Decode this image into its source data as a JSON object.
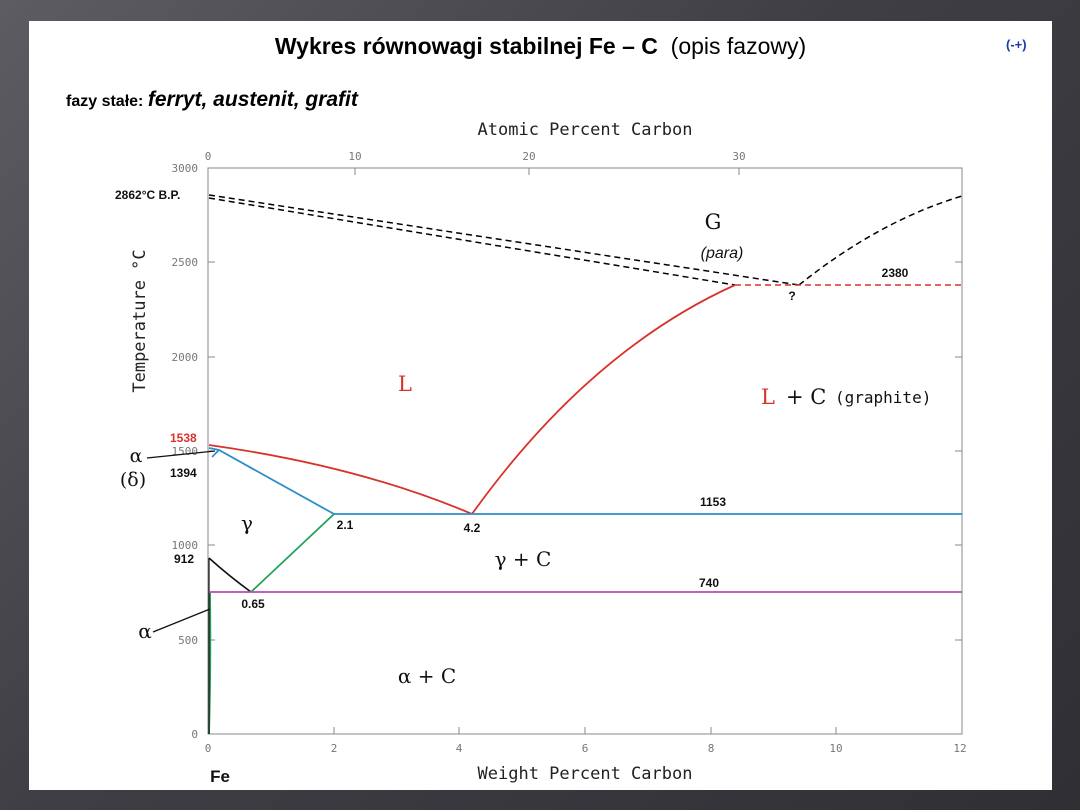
{
  "slide": {
    "title_bold": "Wykres równowagi stabilnej Fe – C",
    "title_normal": "(opis fazowy)",
    "badge": "(-+)",
    "phases_label": "fazy stałe:",
    "phases_list": "ferryt, austenit, grafit"
  },
  "diagram": {
    "top_axis_label": "Atomic Percent Carbon",
    "bottom_axis_label": "Weight Percent Carbon",
    "left_axis_label": "Temperature °C",
    "left_ticks": [
      "0",
      "500",
      "1000",
      "1500",
      "2000",
      "2500",
      "3000"
    ],
    "bottom_ticks": [
      "0",
      "2",
      "4",
      "6",
      "8",
      "10",
      "12"
    ],
    "top_ticks": [
      "0",
      "10",
      "20",
      "30"
    ],
    "fe_label": "Fe",
    "labels": {
      "bp": "2862°C  B.P.",
      "g": "G",
      "para": "(para)",
      "t2380": "2380",
      "question": "?",
      "L": "L",
      "LC_L": "L",
      "LC_rest": "+ C",
      "graphite": "(graphite)",
      "t1538": "1538",
      "alpha_delta_1": "α",
      "alpha_delta_2": "(δ)",
      "t1394": "1394",
      "gamma": "γ",
      "c21": "2.1",
      "c42": "4.2",
      "t1153": "1153",
      "t1000": "1000",
      "t912": "912",
      "gammaC": "γ + C",
      "t740": "740",
      "c065": "0.65",
      "alpha": "α",
      "alphaC": "α + C"
    }
  },
  "colors": {
    "liquidus": "#d8322a",
    "solvus": "#2a8fc7",
    "gamma_alpha": "#23a05a",
    "eutectoid": "#b04fb0",
    "dashed": "#000000",
    "red_text": "#d8322a",
    "badge": "#1e3aa8"
  }
}
